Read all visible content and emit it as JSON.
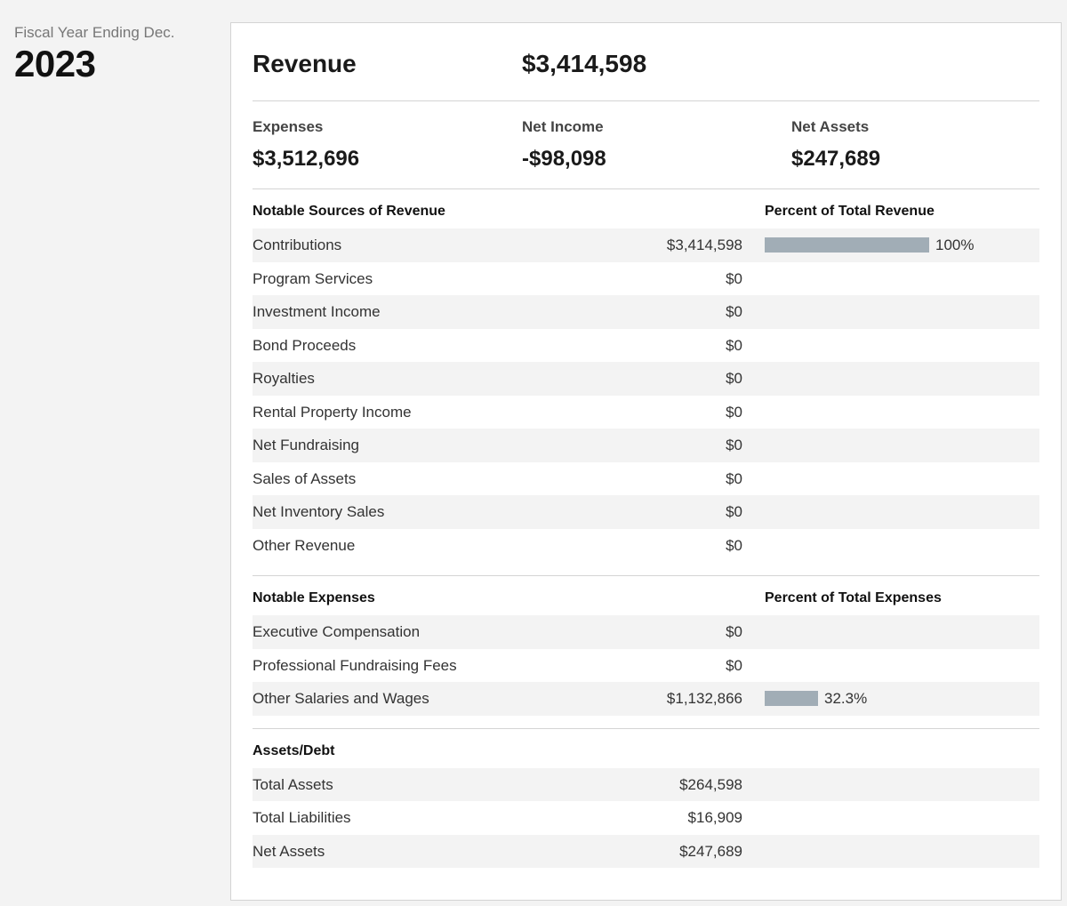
{
  "fiscal": {
    "label": "Fiscal Year Ending Dec.",
    "year": "2023"
  },
  "summary": {
    "revenue_label": "Revenue",
    "revenue_value": "$3,414,598",
    "expenses_label": "Expenses",
    "expenses_value": "$3,512,696",
    "net_income_label": "Net Income",
    "net_income_value": "-$98,098",
    "net_assets_label": "Net Assets",
    "net_assets_value": "$247,689"
  },
  "revenue_sources": {
    "title": "Notable Sources of Revenue",
    "pct_title": "Percent of Total Revenue",
    "rows": [
      {
        "label": "Contributions",
        "value": "$3,414,598",
        "pct": "100%",
        "pct_value": 100
      },
      {
        "label": "Program Services",
        "value": "$0"
      },
      {
        "label": "Investment Income",
        "value": "$0"
      },
      {
        "label": "Bond Proceeds",
        "value": "$0"
      },
      {
        "label": "Royalties",
        "value": "$0"
      },
      {
        "label": "Rental Property Income",
        "value": "$0"
      },
      {
        "label": "Net Fundraising",
        "value": "$0"
      },
      {
        "label": "Sales of Assets",
        "value": "$0"
      },
      {
        "label": "Net Inventory Sales",
        "value": "$0"
      },
      {
        "label": "Other Revenue",
        "value": "$0"
      }
    ]
  },
  "expenses": {
    "title": "Notable Expenses",
    "pct_title": "Percent of Total Expenses",
    "rows": [
      {
        "label": "Executive Compensation",
        "value": "$0"
      },
      {
        "label": "Professional Fundraising Fees",
        "value": "$0"
      },
      {
        "label": "Other Salaries and Wages",
        "value": "$1,132,866",
        "pct": "32.3%",
        "pct_value": 32.3
      }
    ]
  },
  "assets_debt": {
    "title": "Assets/Debt",
    "rows": [
      {
        "label": "Total Assets",
        "value": "$264,598"
      },
      {
        "label": "Total Liabilities",
        "value": "$16,909"
      },
      {
        "label": "Net Assets",
        "value": "$247,689"
      }
    ]
  },
  "colors": {
    "bar": "#a1adb6",
    "row_shade": "#f3f3f3",
    "background": "#f3f3f3"
  }
}
